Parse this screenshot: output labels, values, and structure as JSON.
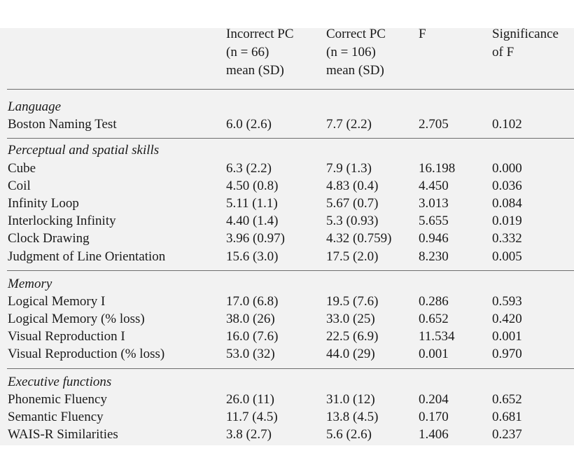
{
  "header": {
    "col1": [
      "Incorrect PC",
      "(n = 66)",
      "mean (SD)"
    ],
    "col2": [
      "Correct PC",
      "(n = 106)",
      "mean (SD)"
    ],
    "col3": [
      "F"
    ],
    "col4": [
      "Significance",
      "of F"
    ]
  },
  "sections": [
    {
      "title": "Language",
      "rows": [
        {
          "label": "Boston Naming Test",
          "incorrect": "6.0 (2.6)",
          "correct": "7.7 (2.2)",
          "f": "2.705",
          "sig": "0.102"
        }
      ]
    },
    {
      "title": "Perceptual and spatial skills",
      "rows": [
        {
          "label": "Cube",
          "incorrect": "6.3 (2.2)",
          "correct": "7.9 (1.3)",
          "f": "16.198",
          "sig": "0.000"
        },
        {
          "label": "Coil",
          "incorrect": "4.50 (0.8)",
          "correct": "4.83 (0.4)",
          "f": "4.450",
          "sig": "0.036"
        },
        {
          "label": "Infinity Loop",
          "incorrect": "5.11 (1.1)",
          "correct": "5.67 (0.7)",
          "f": "3.013",
          "sig": "0.084"
        },
        {
          "label": "Interlocking Infinity",
          "incorrect": "4.40 (1.4)",
          "correct": "5.3 (0.93)",
          "f": "5.655",
          "sig": "0.019"
        },
        {
          "label": "Clock Drawing",
          "incorrect": "3.96 (0.97)",
          "correct": "4.32 (0.759)",
          "f": "0.946",
          "sig": "0.332"
        },
        {
          "label": "Judgment of Line Orientation",
          "incorrect": "15.6 (3.0)",
          "correct": "17.5 (2.0)",
          "f": "8.230",
          "sig": "0.005"
        }
      ]
    },
    {
      "title": "Memory",
      "rows": [
        {
          "label": "Logical Memory I",
          "incorrect": "17.0 (6.8)",
          "correct": "19.5 (7.6)",
          "f": "0.286",
          "sig": "0.593"
        },
        {
          "label": "Logical Memory (% loss)",
          "incorrect": "38.0 (26)",
          "correct": "33.0 (25)",
          "f": "0.652",
          "sig": "0.420"
        },
        {
          "label": "Visual Reproduction I",
          "incorrect": "16.0 (7.6)",
          "correct": "22.5 (6.9)",
          "f": "11.534",
          "sig": "0.001"
        },
        {
          "label": "Visual Reproduction (% loss)",
          "incorrect": "53.0 (32)",
          "correct": "44.0 (29)",
          "f": "0.001",
          "sig": "0.970"
        }
      ]
    },
    {
      "title": "Executive functions",
      "rows": [
        {
          "label": "Phonemic Fluency",
          "incorrect": "26.0 (11)",
          "correct": "31.0 (12)",
          "f": "0.204",
          "sig": "0.652"
        },
        {
          "label": "Semantic Fluency",
          "incorrect": "11.7 (4.5)",
          "correct": "13.8 (4.5)",
          "f": "0.170",
          "sig": "0.681"
        },
        {
          "label": "WAIS-R Similarities",
          "incorrect": "3.8 (2.7)",
          "correct": "5.6 (2.6)",
          "f": "1.406",
          "sig": "0.237"
        }
      ]
    }
  ]
}
